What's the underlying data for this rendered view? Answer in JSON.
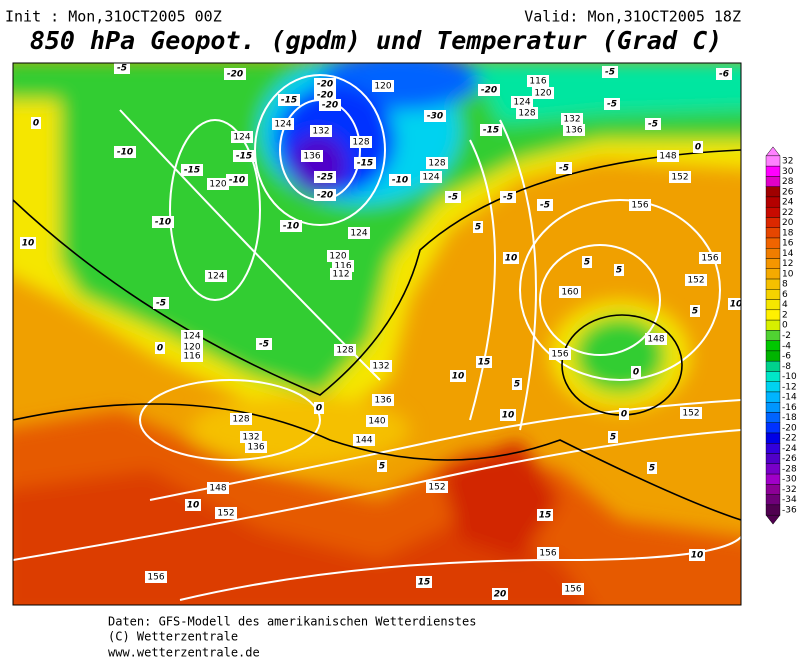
{
  "header": {
    "init": "Init : Mon,31OCT2005 00Z",
    "valid": "Valid: Mon,31OCT2005 18Z",
    "title": "850 hPa Geopot. (gpdm) und Temperatur (Grad C)"
  },
  "footer": [
    "Daten: GFS-Modell des amerikanischen Wetterdienstes",
    "(C) Wetterzentrale",
    "www.wetterzentrale.de"
  ],
  "colorbar": {
    "levels": [
      32,
      30,
      28,
      26,
      24,
      22,
      20,
      18,
      16,
      14,
      12,
      10,
      8,
      6,
      4,
      2,
      0,
      -2,
      -4,
      -6,
      -8,
      -10,
      -12,
      -14,
      -16,
      -18,
      -20,
      -22,
      -24,
      -26,
      -28,
      -30,
      -32,
      -34,
      -36
    ],
    "colors": [
      "#ff80ff",
      "#ff00ff",
      "#e000c8",
      "#a00000",
      "#b40000",
      "#c80a00",
      "#dc2800",
      "#e64600",
      "#f06400",
      "#f07d00",
      "#f59600",
      "#f5aa00",
      "#f5c000",
      "#f5d200",
      "#f5e600",
      "#fff000",
      "#d7f000",
      "#50d232",
      "#00c800",
      "#00b400",
      "#00d28c",
      "#00e6c8",
      "#00d2f0",
      "#00b4ff",
      "#0096ff",
      "#0064ff",
      "#0032ff",
      "#0000e6",
      "#3200dc",
      "#5000c8",
      "#7800c8",
      "#a000c8",
      "#8c0096",
      "#6e0078",
      "#500050"
    ]
  },
  "geopotential_labels": [
    120,
    116,
    120,
    124,
    128,
    132,
    136,
    124,
    124,
    132,
    128,
    136,
    128,
    124,
    120,
    124,
    120,
    116,
    112,
    124,
    124,
    120,
    116,
    128,
    132,
    136,
    128,
    132,
    136,
    140,
    144,
    148,
    152,
    152,
    156,
    156,
    156,
    156,
    152,
    148,
    160,
    152,
    156,
    156,
    152,
    148
  ],
  "temperature_labels": [
    -5,
    -20,
    -15,
    -20,
    -20,
    -20,
    -20,
    -30,
    -15,
    -5,
    -6,
    -5,
    -5,
    0,
    -5,
    -10,
    -15,
    -15,
    -10,
    -25,
    -20,
    -15,
    -10,
    -5,
    -10,
    -10,
    -5,
    -5,
    5,
    10,
    5,
    5,
    -5,
    0,
    -5,
    0,
    5,
    10,
    15,
    5,
    10,
    0,
    0,
    5,
    5,
    10,
    10,
    10,
    0,
    10,
    5,
    15,
    15,
    20
  ]
}
